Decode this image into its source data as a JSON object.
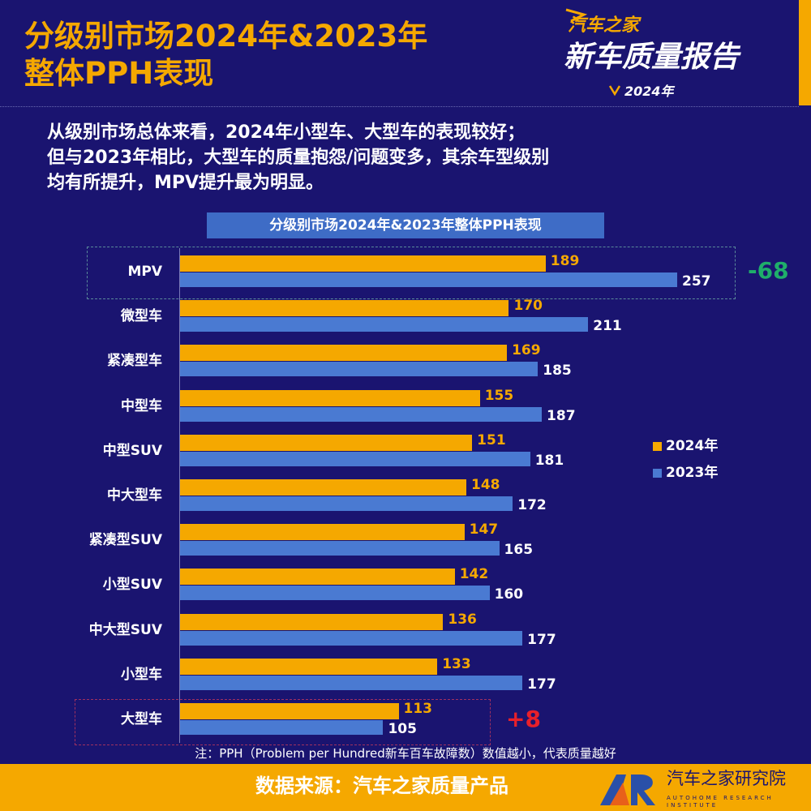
{
  "header": {
    "title_line1": "分级别市场2024年&2023年",
    "title_line2": "整体PPH表现",
    "logo": {
      "brand": "汽车之家",
      "title": "新车质量报告",
      "year": "2024年"
    }
  },
  "summary": [
    "从级别市场总体来看，2024年小型车、大型车的表现较好；",
    "但与2023年相比，大型车的质量抱怨/问题变多，其余车型级别",
    "均有所提升，MPV提升最为明显。"
  ],
  "chart_data": {
    "type": "bar",
    "orientation": "horizontal",
    "title": "分级别市场2024年&2023年整体PPH表现",
    "categories": [
      "MPV",
      "微型车",
      "紧凑型车",
      "中型车",
      "中型SUV",
      "中大型车",
      "紧凑型SUV",
      "小型SUV",
      "中大型SUV",
      "小型车",
      "大型车"
    ],
    "series": [
      {
        "name": "2024年",
        "color": "#f5a800",
        "values": [
          189,
          170,
          169,
          155,
          151,
          148,
          147,
          142,
          136,
          133,
          113
        ]
      },
      {
        "name": "2023年",
        "color": "#4a7ad2",
        "values": [
          257,
          211,
          185,
          187,
          181,
          172,
          165,
          160,
          177,
          177,
          105
        ]
      }
    ],
    "legend_position": "right",
    "grid": false,
    "annotations": [
      {
        "category": "MPV",
        "text": "-68",
        "color": "#1fae6a"
      },
      {
        "category": "大型车",
        "text": "+8",
        "color": "#e8202a"
      }
    ]
  },
  "note": "注：PPH（Problem per Hundred新车百车故障数）数值越小，代表质量越好",
  "footer": {
    "source": "数据来源：汽车之家质量产品",
    "institute": "汽车之家研究院",
    "institute_en": "AUTOHOME RESEARCH INSTITUTE"
  }
}
